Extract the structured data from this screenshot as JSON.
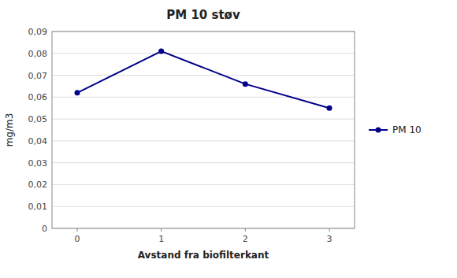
{
  "chart_data": {
    "type": "line",
    "title": "PM 10 støv",
    "xlabel": "Avstand fra biofilterkant",
    "ylabel": "mg/m3",
    "x": [
      0,
      1,
      2,
      3
    ],
    "series": [
      {
        "name": "PM 10",
        "color": "#00008B",
        "marker": "circle",
        "line_style": "solid",
        "values": [
          0.062,
          0.081,
          0.066,
          0.055
        ]
      }
    ],
    "xlim": [
      -0.3,
      3.3
    ],
    "xticks": [
      0,
      1,
      2,
      3
    ],
    "ylim": [
      0,
      0.09
    ],
    "yticks": [
      0,
      {
        "value": 0.01,
        "label": "0,01"
      },
      {
        "value": 0.02,
        "label": "0,02"
      },
      {
        "value": 0.03,
        "label": "0,03"
      },
      {
        "value": 0.04,
        "label": "0,04"
      },
      {
        "value": 0.05,
        "label": "0,05"
      },
      {
        "value": 0.06,
        "label": "0,06"
      },
      {
        "value": 0.07,
        "label": "0,07"
      },
      {
        "value": 0.08,
        "label": "0,08"
      },
      {
        "value": 0.09,
        "label": "0,09"
      }
    ],
    "grid": true,
    "legend": "right"
  }
}
